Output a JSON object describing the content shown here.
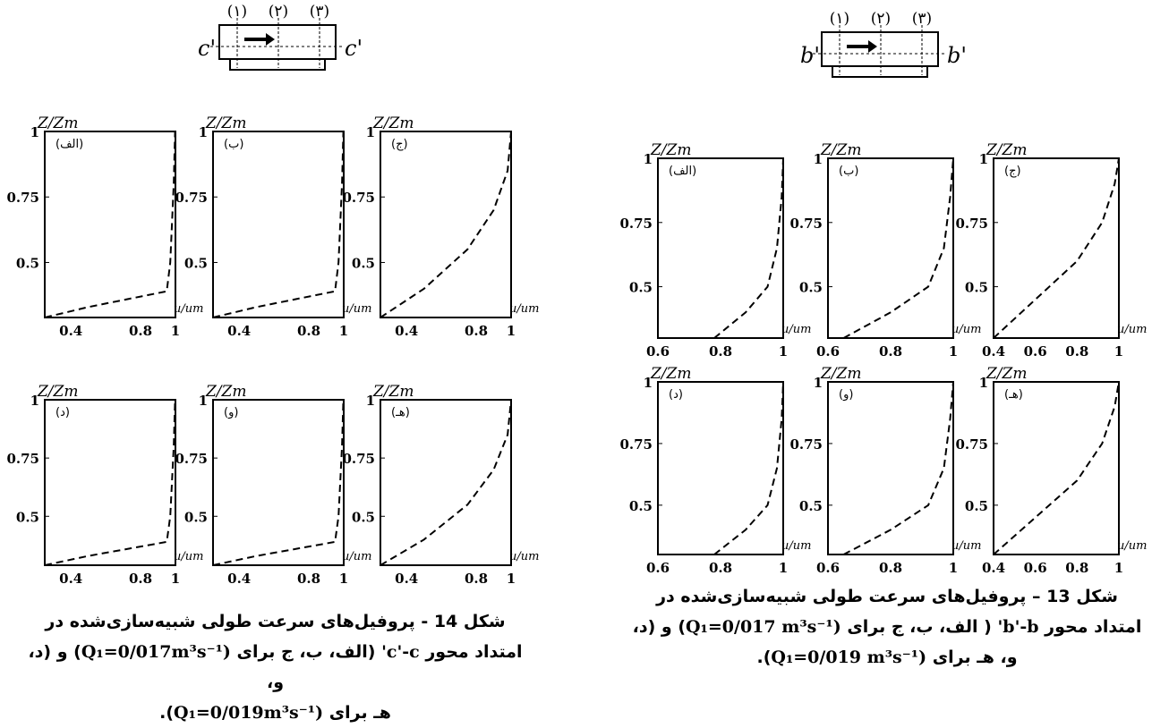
{
  "figures": [
    {
      "id": "fig14",
      "axis_label": "c'",
      "section_labels": [
        "(۱)",
        "(۲)",
        "(۳)"
      ],
      "caption": {
        "line1": "شکل 14 - پروفیل‌های سرعت طولی شبیه‌سازی‌شده در",
        "line2_a": "امتداد محور ",
        "axis_name": "c'-c'",
        "line2_b": " (الف، ب، ج برای ",
        "q1": "(Q₁=0/017m³s⁻¹",
        "line2_c": ") و (د، و،",
        "line3_a": "هـ برای ",
        "q2": "(Q₁=0/019m³s⁻¹",
        "line3_b": ")."
      },
      "panels": [
        {
          "label": "(الف)",
          "ylabel": "Z/Zm",
          "xlabel": "u/um",
          "xticks": [
            "0.4",
            "0.8",
            "1"
          ],
          "yticks": [
            "1",
            "0.75",
            "0.5"
          ]
        },
        {
          "label": "(ب)",
          "ylabel": "Z/Zm",
          "xlabel": "u/um",
          "xticks": [
            "0.4",
            "0.8",
            "1"
          ],
          "yticks": [
            "1",
            "0.75",
            "0.5"
          ]
        },
        {
          "label": "(ج)",
          "ylabel": "Z/Zm",
          "xlabel": "u/um",
          "xticks": [
            "0.4",
            "0.8",
            "1"
          ],
          "yticks": [
            "1",
            "0.75",
            "0.5"
          ]
        },
        {
          "label": "(د)",
          "ylabel": "Z/Zm",
          "xlabel": "u/um",
          "xticks": [
            "0.4",
            "0.8",
            "1"
          ],
          "yticks": [
            "1",
            "0.75",
            "0.5"
          ]
        },
        {
          "label": "(و)",
          "ylabel": "Z/Zm",
          "xlabel": "u/um",
          "xticks": [
            "0.4",
            "0.8",
            "1"
          ],
          "yticks": [
            "1",
            "0.75",
            "0.5"
          ]
        },
        {
          "label": "(هـ)",
          "ylabel": "Z/Zm",
          "xlabel": "u/um",
          "xticks": [
            "0.4",
            "0.8",
            "1"
          ],
          "yticks": [
            "1",
            "0.75",
            "0.5"
          ]
        }
      ]
    },
    {
      "id": "fig13",
      "axis_label": "b'",
      "section_labels": [
        "(۱)",
        "(۲)",
        "(۳)"
      ],
      "caption": {
        "line1": "شکل 13 – پروفیل‌های سرعت طولی شبیه‌سازی‌شده در",
        "line2_a": "امتداد محور ",
        "axis_name": "b'-b'",
        "line2_b": " ( الف، ب، ج برای ",
        "q1": "(Q₁=0/017 m³s⁻¹",
        "line2_c": ") و (د،",
        "line3_a": "و، هـ برای ",
        "q2": "(Q₁=0/019 m³s⁻¹",
        "line3_b": ")."
      },
      "panels": [
        {
          "label": "(الف)",
          "ylabel": "Z/Zm",
          "xlabel": "u/um",
          "xticks": [
            "0.6",
            "0.8",
            "1"
          ],
          "yticks": [
            "1",
            "0.75",
            "0.5"
          ]
        },
        {
          "label": "(ب)",
          "ylabel": "Z/Zm",
          "xlabel": "u/um",
          "xticks": [
            "0.6",
            "0.8",
            "1"
          ],
          "yticks": [
            "1",
            "0.75",
            "0.5"
          ]
        },
        {
          "label": "(ج)",
          "ylabel": "Z/Zm",
          "xlabel": "u/um",
          "xticks": [
            "0.4",
            "0.6",
            "0.8",
            "1"
          ],
          "yticks": [
            "1",
            "0.75",
            "0.5"
          ]
        },
        {
          "label": "(د)",
          "ylabel": "Z/Zm",
          "xlabel": "u/um",
          "xticks": [
            "0.6",
            "0.8",
            "1"
          ],
          "yticks": [
            "1",
            "0.75",
            "0.5"
          ]
        },
        {
          "label": "(و)",
          "ylabel": "Z/Zm",
          "xlabel": "u/um",
          "xticks": [
            "0.6",
            "0.8",
            "1"
          ],
          "yticks": [
            "1",
            "0.75",
            "0.5"
          ]
        },
        {
          "label": "(هـ)",
          "ylabel": "Z/Zm",
          "xlabel": "u/um",
          "xticks": [
            "0.4",
            "0.6",
            "0.8",
            "1"
          ],
          "yticks": [
            "1",
            "0.75",
            "0.5"
          ]
        }
      ]
    }
  ],
  "chart_data": [
    {
      "type": "line",
      "figure": "14",
      "panel": "(الف)",
      "x": [
        0.25,
        0.5,
        0.95,
        0.97,
        0.99,
        0.998
      ],
      "y": [
        0.29,
        0.33,
        0.39,
        0.5,
        0.8,
        1.0
      ],
      "ylim": [
        0.29,
        1
      ],
      "xlim": [
        0.25,
        1
      ]
    },
    {
      "type": "line",
      "figure": "14",
      "panel": "(ب)",
      "x": [
        0.25,
        0.5,
        0.95,
        0.97,
        0.99,
        0.998
      ],
      "y": [
        0.29,
        0.33,
        0.39,
        0.5,
        0.8,
        1.0
      ],
      "ylim": [
        0.29,
        1
      ],
      "xlim": [
        0.25,
        1
      ]
    },
    {
      "type": "line",
      "figure": "14",
      "panel": "(ج)",
      "x": [
        0.25,
        0.5,
        0.75,
        0.9,
        0.98,
        1.0
      ],
      "y": [
        0.29,
        0.4,
        0.55,
        0.7,
        0.85,
        1.0
      ],
      "ylim": [
        0.29,
        1
      ],
      "xlim": [
        0.25,
        1
      ]
    },
    {
      "type": "line",
      "figure": "14",
      "panel": "(د)",
      "x": [
        0.25,
        0.5,
        0.95,
        0.97,
        0.99,
        0.998
      ],
      "y": [
        0.29,
        0.33,
        0.39,
        0.5,
        0.8,
        1.0
      ],
      "ylim": [
        0.29,
        1
      ],
      "xlim": [
        0.25,
        1
      ]
    },
    {
      "type": "line",
      "figure": "14",
      "panel": "(و)",
      "x": [
        0.25,
        0.5,
        0.95,
        0.97,
        0.99,
        0.998
      ],
      "y": [
        0.29,
        0.33,
        0.39,
        0.5,
        0.8,
        1.0
      ],
      "ylim": [
        0.29,
        1
      ],
      "xlim": [
        0.25,
        1
      ]
    },
    {
      "type": "line",
      "figure": "14",
      "panel": "(هـ)",
      "x": [
        0.25,
        0.5,
        0.75,
        0.9,
        0.98,
        1.0
      ],
      "y": [
        0.29,
        0.4,
        0.55,
        0.7,
        0.85,
        1.0
      ],
      "ylim": [
        0.29,
        1
      ],
      "xlim": [
        0.25,
        1
      ]
    },
    {
      "type": "line",
      "figure": "13",
      "panel": "(الف)",
      "x": [
        0.78,
        0.88,
        0.95,
        0.98,
        0.995,
        1.0
      ],
      "y": [
        0.3,
        0.4,
        0.5,
        0.65,
        0.85,
        1.0
      ],
      "ylim": [
        0.3,
        1
      ],
      "xlim": [
        0.6,
        1
      ]
    },
    {
      "type": "line",
      "figure": "13",
      "panel": "(ب)",
      "x": [
        0.65,
        0.8,
        0.92,
        0.97,
        0.99,
        1.0
      ],
      "y": [
        0.3,
        0.4,
        0.5,
        0.65,
        0.85,
        1.0
      ],
      "ylim": [
        0.3,
        1
      ],
      "xlim": [
        0.6,
        1
      ]
    },
    {
      "type": "line",
      "figure": "13",
      "panel": "(ج)",
      "x": [
        0.4,
        0.6,
        0.8,
        0.92,
        0.98,
        1.0
      ],
      "y": [
        0.3,
        0.45,
        0.6,
        0.75,
        0.9,
        1.0
      ],
      "ylim": [
        0.3,
        1
      ],
      "xlim": [
        0.4,
        1
      ]
    },
    {
      "type": "line",
      "figure": "13",
      "panel": "(د)",
      "x": [
        0.78,
        0.88,
        0.95,
        0.98,
        0.995,
        1.0
      ],
      "y": [
        0.3,
        0.4,
        0.5,
        0.65,
        0.85,
        1.0
      ],
      "ylim": [
        0.3,
        1
      ],
      "xlim": [
        0.6,
        1
      ]
    },
    {
      "type": "line",
      "figure": "13",
      "panel": "(و)",
      "x": [
        0.65,
        0.8,
        0.92,
        0.97,
        0.99,
        1.0
      ],
      "y": [
        0.3,
        0.4,
        0.5,
        0.65,
        0.85,
        1.0
      ],
      "ylim": [
        0.3,
        1
      ],
      "xlim": [
        0.6,
        1
      ]
    },
    {
      "type": "line",
      "figure": "13",
      "panel": "(هـ)",
      "x": [
        0.4,
        0.6,
        0.8,
        0.92,
        0.98,
        1.0
      ],
      "y": [
        0.3,
        0.45,
        0.6,
        0.75,
        0.9,
        1.0
      ],
      "ylim": [
        0.3,
        1
      ],
      "xlim": [
        0.4,
        1
      ]
    }
  ]
}
